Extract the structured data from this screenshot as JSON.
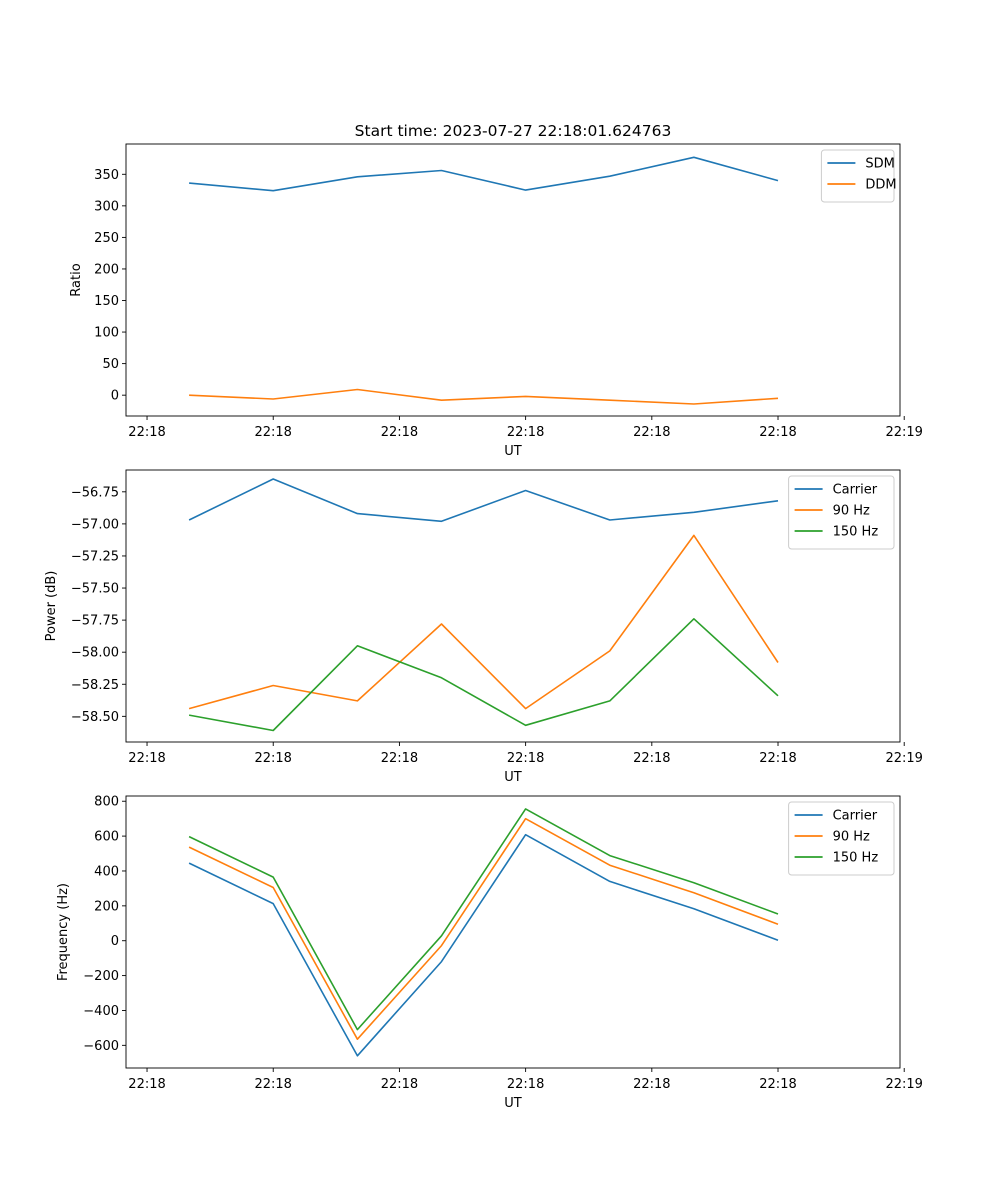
{
  "chart_data": [
    {
      "type": "line",
      "title": "Start time: 2023-07-27 22:18:01.624763",
      "xlabel": "UT",
      "ylabel": "Ratio",
      "xlim": [
        0,
        9.2
      ],
      "x": [
        0.75,
        1.75,
        2.75,
        3.75,
        4.75,
        5.75,
        6.75,
        7.75
      ],
      "x_ticks": [
        0.25,
        1.75,
        3.25,
        4.75,
        6.25,
        7.75,
        9.25
      ],
      "x_tick_labels": [
        "22:18",
        "22:18",
        "22:18",
        "22:18",
        "22:18",
        "22:18",
        "22:19"
      ],
      "ylim": [
        -33,
        398
      ],
      "y_ticks": [
        0,
        50,
        100,
        150,
        200,
        250,
        300,
        350
      ],
      "y_tick_labels": [
        "0",
        "50",
        "100",
        "150",
        "200",
        "250",
        "300",
        "350"
      ],
      "legend": "top-right",
      "series": [
        {
          "name": "SDM",
          "color": "#1f77b4",
          "values": [
            336,
            324,
            346,
            356,
            325,
            347,
            377,
            340
          ]
        },
        {
          "name": "DDM",
          "color": "#ff7f0e",
          "values": [
            0,
            -6,
            9,
            -8,
            -2,
            -8,
            -14,
            -5
          ]
        }
      ]
    },
    {
      "type": "line",
      "title": "",
      "xlabel": "UT",
      "ylabel": "Power (dB)",
      "xlim": [
        0,
        9.2
      ],
      "x": [
        0.75,
        1.75,
        2.75,
        3.75,
        4.75,
        5.75,
        6.75,
        7.75
      ],
      "x_ticks": [
        0.25,
        1.75,
        3.25,
        4.75,
        6.25,
        7.75,
        9.25
      ],
      "x_tick_labels": [
        "22:18",
        "22:18",
        "22:18",
        "22:18",
        "22:18",
        "22:18",
        "22:19"
      ],
      "ylim": [
        -58.7,
        -56.58
      ],
      "y_ticks": [
        -58.5,
        -58.25,
        -58.0,
        -57.75,
        -57.5,
        -57.25,
        -57.0,
        -56.75
      ],
      "y_tick_labels": [
        "−58.50",
        "−58.25",
        "−58.00",
        "−57.75",
        "−57.50",
        "−57.25",
        "−57.00",
        "−56.75"
      ],
      "legend": "top-right",
      "series": [
        {
          "name": "Carrier",
          "color": "#1f77b4",
          "values": [
            -56.97,
            -56.65,
            -56.92,
            -56.98,
            -56.74,
            -56.97,
            -56.91,
            -56.82
          ]
        },
        {
          "name": "90 Hz",
          "color": "#ff7f0e",
          "values": [
            -58.44,
            -58.26,
            -58.38,
            -57.78,
            -58.44,
            -57.99,
            -57.09,
            -58.08
          ]
        },
        {
          "name": "150 Hz",
          "color": "#2ca02c",
          "values": [
            -58.49,
            -58.61,
            -57.95,
            -58.2,
            -58.57,
            -58.38,
            -57.74,
            -58.34
          ]
        }
      ]
    },
    {
      "type": "line",
      "title": "",
      "xlabel": "UT",
      "ylabel": "Frequency (Hz)",
      "xlim": [
        0,
        9.2
      ],
      "x": [
        0.75,
        1.75,
        2.75,
        3.75,
        4.75,
        5.75,
        6.75,
        7.75
      ],
      "x_ticks": [
        0.25,
        1.75,
        3.25,
        4.75,
        6.25,
        7.75,
        9.25
      ],
      "x_tick_labels": [
        "22:18",
        "22:18",
        "22:18",
        "22:18",
        "22:18",
        "22:18",
        "22:19"
      ],
      "ylim": [
        -730,
        830
      ],
      "y_ticks": [
        -600,
        -400,
        -200,
        0,
        200,
        400,
        600,
        800
      ],
      "y_tick_labels": [
        "−600",
        "−400",
        "−200",
        "0",
        "200",
        "400",
        "600",
        "800"
      ],
      "legend": "top-right",
      "series": [
        {
          "name": "Carrier",
          "color": "#1f77b4",
          "values": [
            445,
            213,
            -660,
            -120,
            608,
            340,
            183,
            3
          ]
        },
        {
          "name": "90 Hz",
          "color": "#ff7f0e",
          "values": [
            537,
            305,
            -565,
            -28,
            700,
            433,
            275,
            95
          ]
        },
        {
          "name": "150 Hz",
          "color": "#2ca02c",
          "values": [
            597,
            365,
            -510,
            28,
            756,
            488,
            333,
            153
          ]
        }
      ]
    }
  ]
}
